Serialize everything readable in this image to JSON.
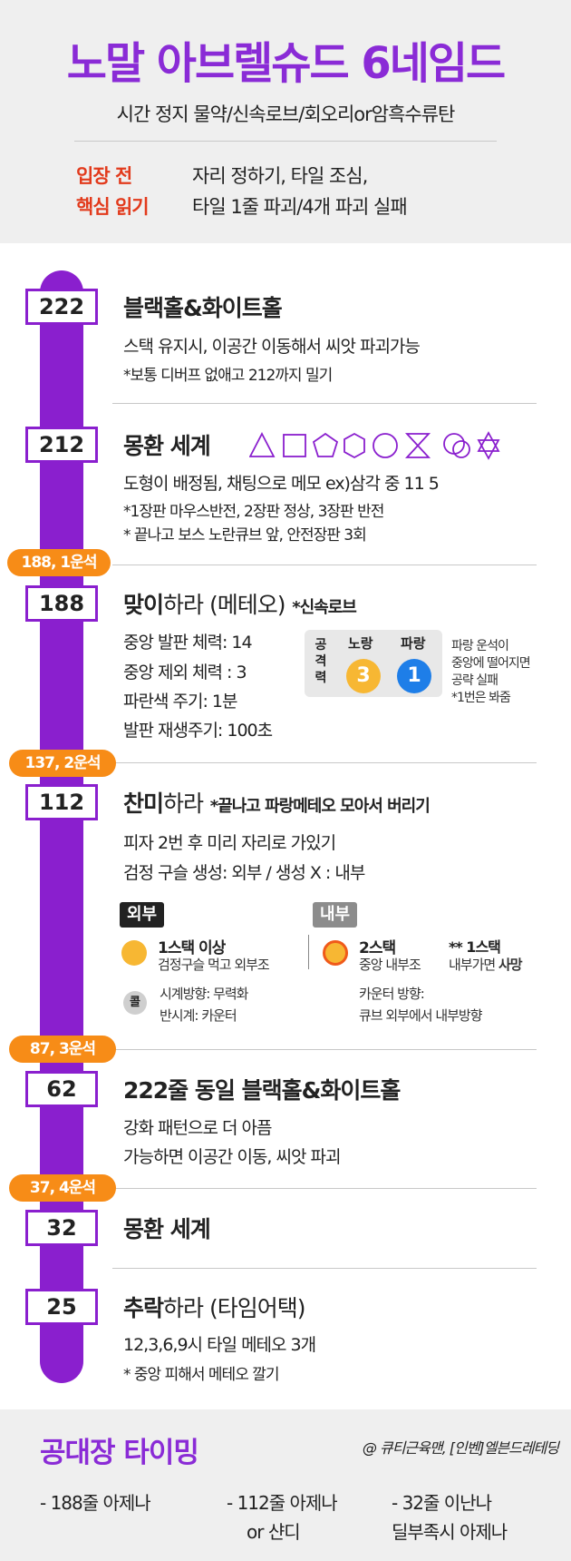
{
  "header": {
    "title": "노말 아브렐슈드 6네임드",
    "subtitle": "시간 정지 물약/신속로브/회오리or암흑수류탄",
    "pre_label_1": "입장 전",
    "pre_label_2": "핵심 읽기",
    "pre_text_1": "자리 정하기, 타일 조심,",
    "pre_text_2": "타일 1줄 파괴/4개 파괴 실패"
  },
  "colors": {
    "accent": "#8a1fce",
    "orange": "#f78c17",
    "red": "#e23a1c",
    "blue": "#1e7ee8",
    "yellow": "#f7b733"
  },
  "phases": [
    {
      "num": "222",
      "title": "블랙홀&화이트홀",
      "lines": [
        "스택 유지시, 이공간 이동해서 씨앗 파괴가능",
        "*보통 디버프 없애고 212까지 밀기"
      ]
    },
    {
      "num": "212",
      "title": "몽환 세계",
      "lines": [
        "도형이 배정됨, 채팅으로 메모    ex)삼각 중 11 5",
        "*1장판 마우스반전, 2장판 정상, 3장판 반전",
        "* 끝나고 보스 노란큐브 앞, 안전장판 3회"
      ]
    },
    {
      "num": "188",
      "pill": "188, 1운석",
      "title_bold": "맞이",
      "title_rest": "하라 (메테오)",
      "title_note": "*신속로브",
      "lines": [
        "중앙 발판 체력: 14",
        "중앙 제외 체력 : 3",
        "파란색 주기: 1분",
        "발판 재생주기: 100초"
      ],
      "attack": {
        "label": "공격력",
        "yellow_label": "노랑",
        "yellow_value": "3",
        "blue_label": "파랑",
        "blue_value": "1"
      },
      "side_notes": [
        "파랑 운석이",
        "중앙에 떨어지면",
        "공략 실패",
        "*1번은 봐줌"
      ]
    },
    {
      "num": "112",
      "pill": "137, 2운석",
      "title_bold": "찬미",
      "title_rest": "하라",
      "title_note": "*끝나고 파랑메테오 모아서 버리기",
      "lines": [
        "피자 2번 후 미리 자리로 가있기",
        "검정 구슬 생성: 외부 / 생성 X : 내부"
      ],
      "outer_tag": "외부",
      "inner_tag": "내부",
      "outer_1": "1스택 이상",
      "outer_2": "검정구슬 먹고 외부조",
      "inner_1": "2스택",
      "inner_2": "중앙 내부조",
      "inner_3": "** 1스택",
      "inner_4a": "내부가면 ",
      "inner_4b": "사망",
      "kol": "콜",
      "kol_1": "시계방향: 무력화",
      "kol_2": "반시계: 카운터",
      "counter_1": "카운터 방향:",
      "counter_2": "큐브 외부에서 내부방향"
    },
    {
      "num": "62",
      "pill": "87, 3운석",
      "title": "222줄 동일 블랙홀&화이트홀",
      "lines": [
        "강화 패턴으로 더 아픔",
        "가능하면 이공간 이동, 씨앗 파괴"
      ]
    },
    {
      "num": "32",
      "pill": "37, 4운석",
      "title": "몽환 세계"
    },
    {
      "num": "25",
      "title_bold": "추락",
      "title_rest": "하라 (타임어택)",
      "lines": [
        "12,3,6,9시 타일 메테오 3개",
        "* 중앙 피해서 메테오 깔기"
      ]
    }
  ],
  "footer": {
    "title": "공대장 타이밍",
    "credit": "@ 큐티근육맨, [인벤]엘븐드레테딩",
    "col1": "- 188줄 아제나",
    "col2_1": "- 112줄 아제나",
    "col2_2": "or 샨디",
    "col3_1": "- 32줄 이난나",
    "col3_2": "딜부족시 아제나"
  }
}
